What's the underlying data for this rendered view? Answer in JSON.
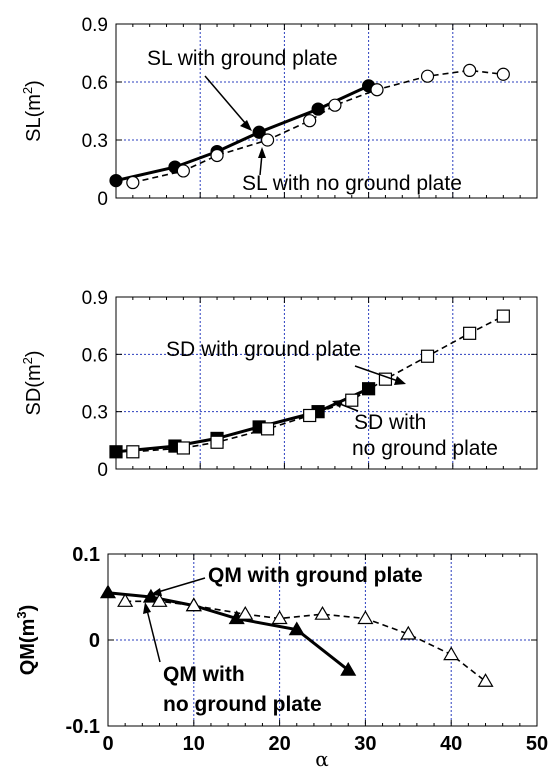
{
  "chart_data": [
    {
      "type": "line",
      "ylabel_prefix": "SL(m",
      "ylabel_exp": "2",
      "ylabel_suffix": ")",
      "xlim": [
        0,
        50
      ],
      "ylim": [
        0,
        0.9
      ],
      "yticks": [
        "0",
        "0.3",
        "0.6",
        "0.9"
      ],
      "grid": true,
      "series": [
        {
          "x": [
            0,
            7,
            12,
            17,
            24,
            30
          ],
          "y": [
            0.09,
            0.16,
            0.24,
            0.34,
            0.46,
            0.58
          ],
          "marker": "filled-circle",
          "line": "solid"
        },
        {
          "x": [
            2,
            8,
            12,
            18,
            23,
            26,
            31,
            37,
            42,
            46
          ],
          "y": [
            0.08,
            0.14,
            0.22,
            0.3,
            0.4,
            0.48,
            0.56,
            0.63,
            0.66,
            0.64
          ],
          "marker": "open-circle",
          "line": "dashed"
        }
      ],
      "annotations": [
        "SL with ground plate",
        "SL with no ground plate"
      ]
    },
    {
      "type": "line",
      "ylabel_prefix": "SD(m",
      "ylabel_exp": "2",
      "ylabel_suffix": ")",
      "xlim": [
        0,
        50
      ],
      "ylim": [
        0,
        0.9
      ],
      "yticks": [
        "0",
        "0.3",
        "0.6",
        "0.9"
      ],
      "grid": true,
      "series": [
        {
          "x": [
            0,
            7,
            12,
            17,
            24,
            30
          ],
          "y": [
            0.09,
            0.12,
            0.16,
            0.22,
            0.3,
            0.42
          ],
          "marker": "filled-square",
          "line": "solid"
        },
        {
          "x": [
            2,
            8,
            12,
            18,
            23,
            28,
            32,
            37,
            42,
            46
          ],
          "y": [
            0.09,
            0.11,
            0.14,
            0.21,
            0.28,
            0.36,
            0.47,
            0.59,
            0.71,
            0.8
          ],
          "marker": "open-square",
          "line": "dashed"
        }
      ],
      "annotations": [
        "SD with ground plate",
        "SD with",
        "no ground plate"
      ]
    },
    {
      "type": "line",
      "ylabel_prefix": "QM(m",
      "ylabel_exp": "3",
      "ylabel_suffix": ")",
      "xlabel": "α",
      "xlim": [
        0,
        50
      ],
      "ylim": [
        -0.1,
        0.1
      ],
      "yticks": [
        "-0.1",
        "0",
        "0.1"
      ],
      "xticks": [
        "0",
        "10",
        "20",
        "30",
        "40",
        "50"
      ],
      "grid": true,
      "series": [
        {
          "x": [
            0,
            5,
            10,
            15,
            22,
            28
          ],
          "y": [
            0.055,
            0.05,
            0.04,
            0.025,
            0.012,
            -0.035
          ],
          "marker": "filled-triangle",
          "line": "solid"
        },
        {
          "x": [
            2,
            6,
            10,
            16,
            20,
            25,
            30,
            35,
            40,
            44
          ],
          "y": [
            0.045,
            0.045,
            0.04,
            0.03,
            0.025,
            0.03,
            0.025,
            0.007,
            -0.017,
            -0.048
          ],
          "marker": "open-triangle",
          "line": "dashed"
        }
      ],
      "annotations": [
        "QM with ground plate",
        "QM with",
        "no ground plate"
      ]
    }
  ]
}
